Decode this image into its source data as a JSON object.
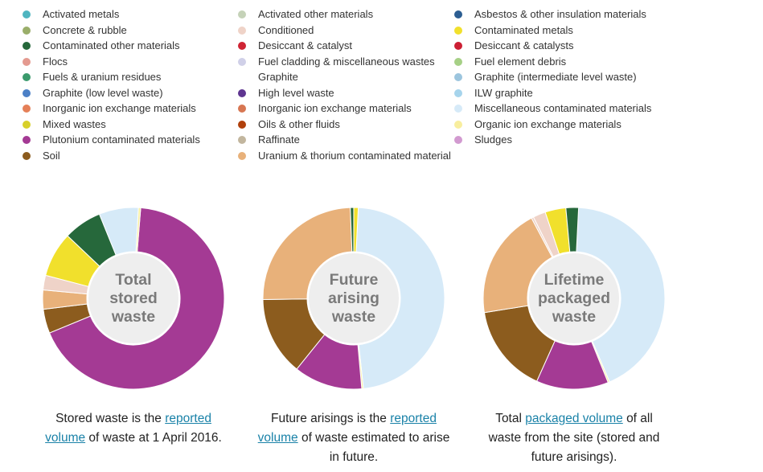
{
  "legend": {
    "columns": [
      [
        {
          "label": "Activated metals",
          "color": "#4fb5c0"
        },
        {
          "label": "Concrete & rubble",
          "color": "#9aae6a"
        },
        {
          "label": "Contaminated other materials",
          "color": "#26683b"
        },
        {
          "label": "Flocs",
          "color": "#e49a90"
        },
        {
          "label": "Fuels & uranium residues",
          "color": "#3b9a6c"
        },
        {
          "label": "Graphite (low level waste)",
          "color": "#4c80c6"
        },
        {
          "label": "Inorganic ion exchange materials",
          "color": "#e58058"
        },
        {
          "label": "Mixed wastes",
          "color": "#d8d02a"
        },
        {
          "label": "Plutonium contaminated materials",
          "color": "#a43a94"
        },
        {
          "label": "Soil",
          "color": "#8c5c1e"
        }
      ],
      [
        {
          "label": "Activated other materials",
          "color": "#c5d2b8"
        },
        {
          "label": "Conditioned",
          "color": "#efd3c8"
        },
        {
          "label": "Desiccant & catalyst",
          "color": "#cf2434"
        },
        {
          "label": "Fuel cladding & miscellaneous wastes Graphite",
          "color": "#d0d0e8"
        },
        {
          "label": "High level waste",
          "color": "#5e3590"
        },
        {
          "label": "Inorganic ion exchange materials",
          "color": "#d77652"
        },
        {
          "label": "Oils & other fluids",
          "color": "#b0400c"
        },
        {
          "label": "Raffinate",
          "color": "#c2b69e"
        },
        {
          "label": "Uranium & thorium contaminated material",
          "color": "#e8b17a"
        }
      ],
      [
        {
          "label": "Asbestos & other insulation materials",
          "color": "#2c5e92"
        },
        {
          "label": "Contaminated metals",
          "color": "#f1e02c"
        },
        {
          "label": "Desiccant & catalysts",
          "color": "#cc1f34"
        },
        {
          "label": "Fuel element debris",
          "color": "#a6d086"
        },
        {
          "label": "Graphite (intermediate level waste)",
          "color": "#9cc5de"
        },
        {
          "label": "ILW graphite",
          "color": "#a6d4ec"
        },
        {
          "label": "Miscellaneous contaminated materials",
          "color": "#d6eaf8"
        },
        {
          "label": "Organic ion exchange materials",
          "color": "#f8ee9e"
        },
        {
          "label": "Sludges",
          "color": "#d29ad0"
        }
      ]
    ]
  },
  "chart_data": [
    {
      "type": "pie",
      "donut": true,
      "title": "Total stored waste",
      "slices": [
        {
          "label": "Plutonium contaminated materials",
          "value": 67.5,
          "color": "#a43a94"
        },
        {
          "label": "Soil",
          "value": 4.3,
          "color": "#8c5c1e"
        },
        {
          "label": "Uranium & thorium contaminated material",
          "value": 3.4,
          "color": "#e8b17a"
        },
        {
          "label": "Conditioned",
          "value": 2.6,
          "color": "#efd3c8"
        },
        {
          "label": "Contaminated metals",
          "value": 8.0,
          "color": "#f1e02c"
        },
        {
          "label": "Contaminated other materials",
          "value": 6.8,
          "color": "#26683b"
        },
        {
          "label": "Miscellaneous contaminated materials",
          "value": 7.0,
          "color": "#d6eaf8"
        },
        {
          "label": "Organic ion exchange materials",
          "value": 0.4,
          "color": "#f8ee9e"
        }
      ]
    },
    {
      "type": "pie",
      "donut": true,
      "title": "Future arising waste",
      "slices": [
        {
          "label": "Miscellaneous contaminated materials",
          "value": 47.5,
          "color": "#d6eaf8"
        },
        {
          "label": "Organic ion exchange materials",
          "value": 0.3,
          "color": "#f8ee9e"
        },
        {
          "label": "Plutonium contaminated materials",
          "value": 12.2,
          "color": "#a43a94"
        },
        {
          "label": "Soil",
          "value": 14.0,
          "color": "#8c5c1e"
        },
        {
          "label": "Uranium & thorium contaminated material",
          "value": 24.6,
          "color": "#e8b17a"
        },
        {
          "label": "Contaminated other materials",
          "value": 0.6,
          "color": "#26683b"
        },
        {
          "label": "Contaminated metals",
          "value": 0.8,
          "color": "#f1e02c"
        }
      ]
    },
    {
      "type": "pie",
      "donut": true,
      "title": "Lifetime packaged waste",
      "slices": [
        {
          "label": "Miscellaneous contaminated materials",
          "value": 44.0,
          "color": "#d6eaf8"
        },
        {
          "label": "Organic ion exchange materials",
          "value": 0.3,
          "color": "#f8ee9e"
        },
        {
          "label": "Plutonium contaminated materials",
          "value": 13.2,
          "color": "#a43a94"
        },
        {
          "label": "Soil",
          "value": 16.2,
          "color": "#8c5c1e"
        },
        {
          "label": "Uranium & thorium contaminated material",
          "value": 20.3,
          "color": "#e8b17a"
        },
        {
          "label": "Conditioned",
          "value": 0.4,
          "color": "#efd3c8"
        },
        {
          "label": "Conditioned",
          "value": 2.3,
          "color": "#efd3c8"
        },
        {
          "label": "Contaminated metals",
          "value": 3.8,
          "color": "#f1e02c"
        },
        {
          "label": "Contaminated other materials",
          "value": 2.3,
          "color": "#26683b"
        }
      ]
    }
  ],
  "donuts": [
    {
      "center_lines": [
        "Total",
        "stored",
        "waste"
      ]
    },
    {
      "center_lines": [
        "Future",
        "arising",
        "waste"
      ]
    },
    {
      "center_lines": [
        "Lifetime",
        "packaged",
        "waste"
      ]
    }
  ],
  "captions": [
    {
      "before": "Stored waste is the",
      "link": "reported volume",
      "after": "of waste at 1 April 2016."
    },
    {
      "before": "Future arisings is the",
      "link": "reported volume",
      "after": "of waste estimated to arise in future."
    },
    {
      "before": "Total",
      "link": "packaged volume",
      "after": "of all waste from the site (stored and future arisings)."
    }
  ]
}
